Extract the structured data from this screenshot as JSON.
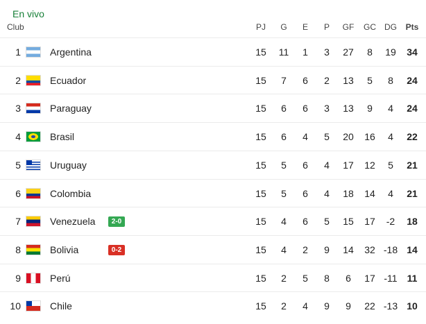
{
  "header": {
    "title": "En vivo",
    "columns": [
      "Club",
      "PJ",
      "G",
      "E",
      "P",
      "GF",
      "GC",
      "DG",
      "Pts"
    ]
  },
  "table": {
    "rows": [
      {
        "pos": 1,
        "club": "Argentina",
        "stats": [
          15,
          11,
          1,
          3,
          27,
          8,
          19,
          34
        ]
      },
      {
        "pos": 2,
        "club": "Ecuador",
        "stats": [
          15,
          7,
          6,
          2,
          13,
          5,
          8,
          24
        ]
      },
      {
        "pos": 3,
        "club": "Paraguay",
        "stats": [
          15,
          6,
          6,
          3,
          13,
          9,
          4,
          24
        ]
      },
      {
        "pos": 4,
        "club": "Brasil",
        "stats": [
          15,
          6,
          4,
          5,
          20,
          16,
          4,
          22
        ]
      },
      {
        "pos": 5,
        "club": "Uruguay",
        "stats": [
          15,
          5,
          6,
          4,
          17,
          12,
          5,
          21
        ]
      },
      {
        "pos": 6,
        "club": "Colombia",
        "stats": [
          15,
          5,
          6,
          4,
          18,
          14,
          4,
          21
        ]
      },
      {
        "pos": 7,
        "club": "Venezuela",
        "live": {
          "score": "2-0",
          "color": "#34a853"
        },
        "stats": [
          15,
          4,
          6,
          5,
          15,
          17,
          -2,
          18
        ]
      },
      {
        "pos": 8,
        "club": "Bolivia",
        "live": {
          "score": "0-2",
          "color": "#d93025"
        },
        "stats": [
          15,
          4,
          2,
          9,
          14,
          32,
          -18,
          14
        ]
      },
      {
        "pos": 9,
        "club": "Perú",
        "stats": [
          15,
          2,
          5,
          8,
          6,
          17,
          -11,
          11
        ]
      },
      {
        "pos": 10,
        "club": "Chile",
        "stats": [
          15,
          2,
          4,
          9,
          9,
          22,
          -13,
          10
        ]
      }
    ]
  }
}
